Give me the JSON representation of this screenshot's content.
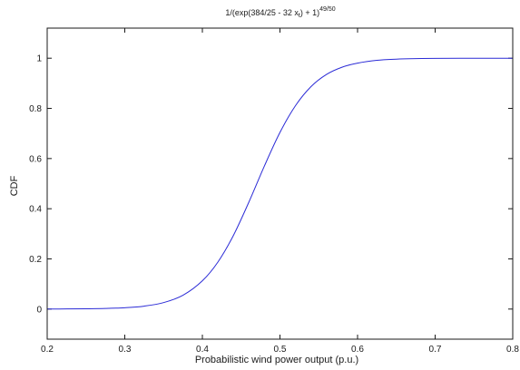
{
  "chart_data": {
    "type": "line",
    "title": {
      "base": "1/(exp(384/25 - 32 x",
      "sub": "t",
      "tail": ") + 1)",
      "sup": "49/50"
    },
    "xlabel": "Probabilistic wind power output (p.u.)",
    "ylabel": "CDF",
    "xlim": [
      0.2,
      0.8
    ],
    "ylim": [
      -0.12,
      1.12
    ],
    "x_ticks": [
      0.2,
      0.3,
      0.4,
      0.5,
      0.6,
      0.7,
      0.8
    ],
    "x_tick_labels": [
      "0.2",
      "0.3",
      "0.4",
      "0.5",
      "0.6",
      "0.7",
      "0.8"
    ],
    "y_ticks": [
      0,
      0.2,
      0.4,
      0.6,
      0.8,
      1
    ],
    "y_tick_labels": [
      "0",
      "0.2",
      "0.4",
      "0.6",
      "0.8",
      "1"
    ],
    "grid": false,
    "line_color": "#2b2bd6",
    "axis_color": "#1a1a1a",
    "x": [
      0.2,
      0.225,
      0.25,
      0.275,
      0.3,
      0.325,
      0.35,
      0.375,
      0.4,
      0.42,
      0.44,
      0.46,
      0.48,
      0.5,
      0.52,
      0.54,
      0.56,
      0.58,
      0.6,
      0.625,
      0.65,
      0.675,
      0.7,
      0.75,
      0.8
    ],
    "y": [
      0.0002,
      0.0005,
      0.0011,
      0.0024,
      0.0053,
      0.0117,
      0.0257,
      0.0551,
      0.1127,
      0.1874,
      0.2936,
      0.4268,
      0.5708,
      0.7041,
      0.811,
      0.8869,
      0.9355,
      0.9642,
      0.9805,
      0.9917,
      0.9962,
      0.9983,
      0.9992,
      0.9998,
      1.0
    ]
  }
}
